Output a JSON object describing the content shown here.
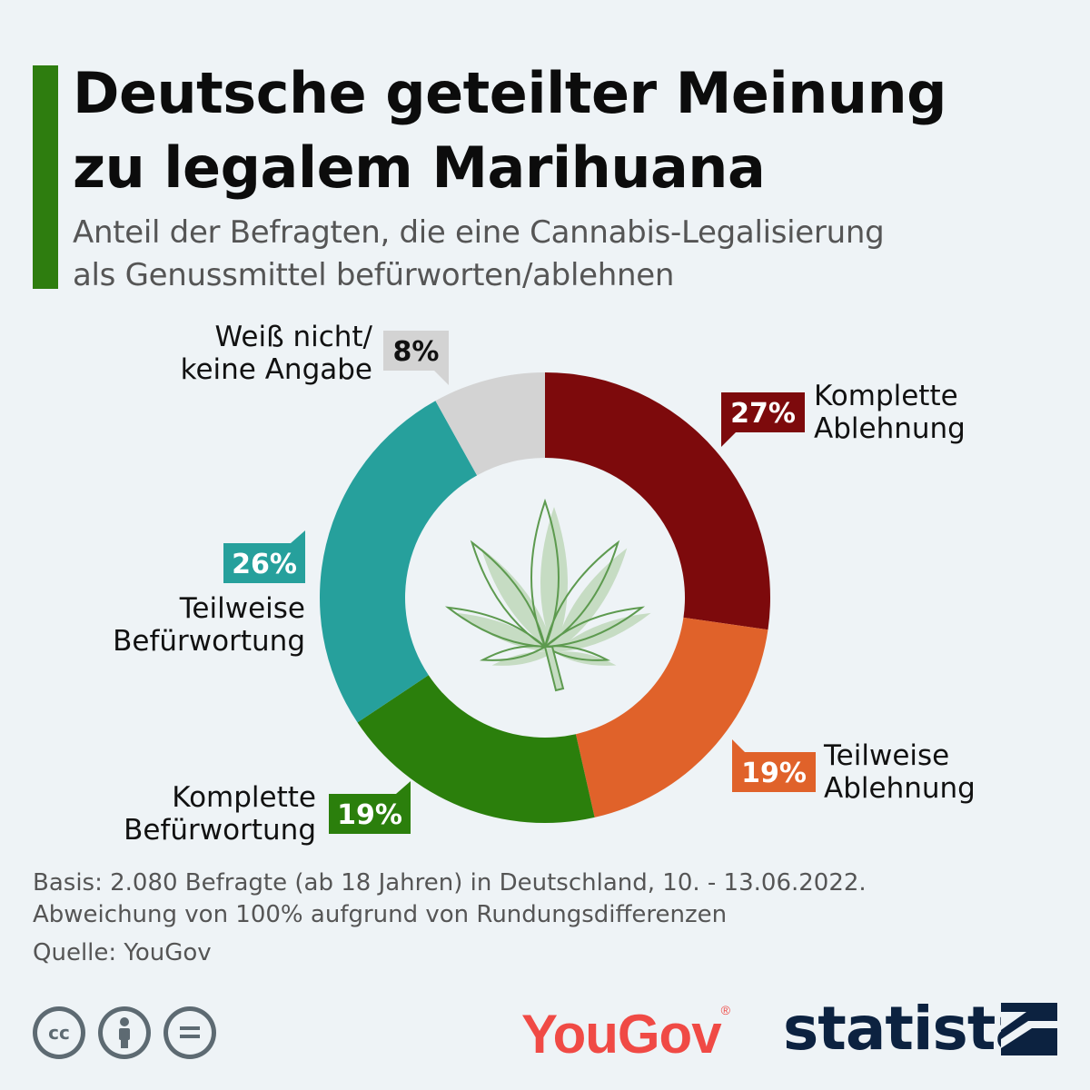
{
  "header": {
    "title": "Deutsche geteilter Meinung\nzu legalem Marihuana",
    "subtitle": "Anteil der Befragten, die eine Cannabis-Legalisierung\nals Genussmittel befürworten/ablehnen"
  },
  "chart_data": {
    "type": "pie",
    "variant": "donut",
    "slices": [
      {
        "label": "Komplette\nAblehnung",
        "value": 27,
        "value_label": "27%",
        "color": "#7d0a0c"
      },
      {
        "label": "Teilweise\nAblehnung",
        "value": 19,
        "value_label": "19%",
        "color": "#e0622a"
      },
      {
        "label": "Komplette\nBefürwortung",
        "value": 19,
        "value_label": "19%",
        "color": "#2b7f0c"
      },
      {
        "label": "Teilweise\nBefürwortung",
        "value": 26,
        "value_label": "26%",
        "color": "#26a09c"
      },
      {
        "label": "Weiß nicht/\nkeine Angabe",
        "value": 8,
        "value_label": "8%",
        "color": "#d3d3d3"
      }
    ],
    "center_icon": "cannabis-leaf-icon"
  },
  "footer": {
    "note": "Basis: 2.080 Befragte (ab 18 Jahren) in Deutschland, 10. - 13.06.2022.\nAbweichung von 100% aufgrund von Rundungsdifferenzen",
    "source": "Quelle: YouGov",
    "license_icons": [
      "cc-icon",
      "attribution-icon",
      "no-derivatives-icon"
    ],
    "yougov_logo": "YouGov",
    "statista_logo": "statista"
  }
}
